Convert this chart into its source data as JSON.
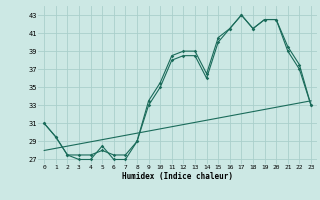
{
  "bg_color": "#cce8e4",
  "grid_color": "#aacfcb",
  "line_color": "#1a6b5a",
  "xlabel": "Humidex (Indice chaleur)",
  "xlim": [
    -0.5,
    23.5
  ],
  "ylim": [
    26.5,
    44.0
  ],
  "yticks": [
    27,
    29,
    31,
    33,
    35,
    37,
    39,
    41,
    43
  ],
  "xticks": [
    0,
    1,
    2,
    3,
    4,
    5,
    6,
    7,
    8,
    9,
    10,
    11,
    12,
    13,
    14,
    15,
    16,
    17,
    18,
    19,
    20,
    21,
    22,
    23
  ],
  "series1_x": [
    0,
    1,
    2,
    3,
    4,
    5,
    6,
    7,
    8,
    9,
    10,
    11,
    12,
    13,
    14,
    15,
    16,
    17,
    18,
    19,
    20,
    21,
    22,
    23
  ],
  "series1_y": [
    31.0,
    29.5,
    27.5,
    27.5,
    27.5,
    28.0,
    27.5,
    27.5,
    29.0,
    33.5,
    35.5,
    38.5,
    39.0,
    39.0,
    36.5,
    40.5,
    41.5,
    43.0,
    41.5,
    42.5,
    42.5,
    39.5,
    37.5,
    33.0
  ],
  "series2_x": [
    0,
    1,
    2,
    3,
    4,
    5,
    6,
    7,
    8,
    9,
    10,
    11,
    12,
    13,
    14,
    15,
    16,
    17,
    18,
    19,
    20,
    21,
    22,
    23
  ],
  "series2_y": [
    31.0,
    29.5,
    27.5,
    27.0,
    27.0,
    28.5,
    27.0,
    27.0,
    29.0,
    33.0,
    35.0,
    38.0,
    38.5,
    38.5,
    36.0,
    40.0,
    41.5,
    43.0,
    41.5,
    42.5,
    42.5,
    39.0,
    37.0,
    33.0
  ],
  "series3_x": [
    0,
    23
  ],
  "series3_y": [
    28.0,
    33.5
  ]
}
